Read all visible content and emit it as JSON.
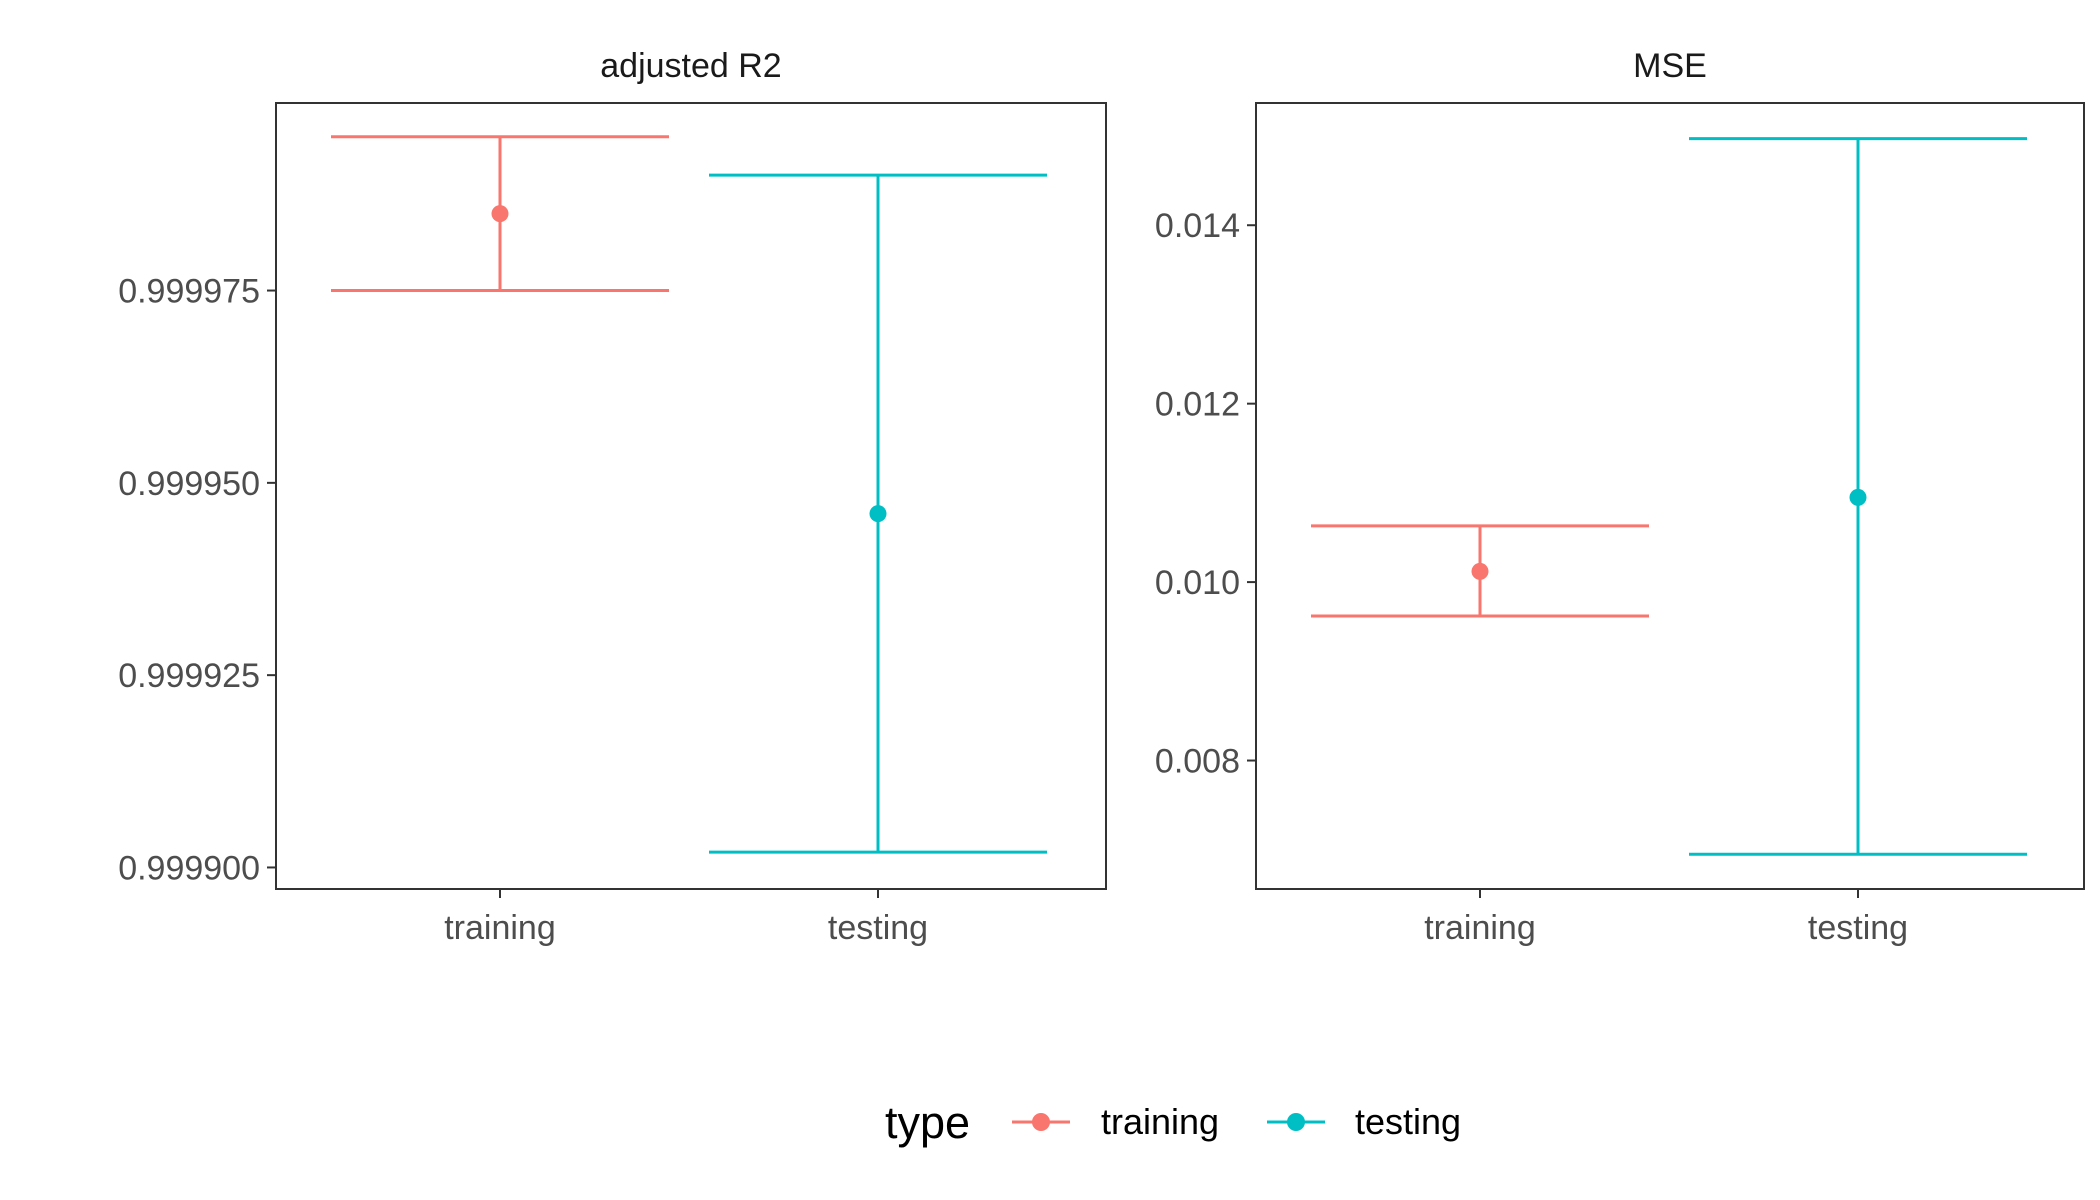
{
  "legend": {
    "title": "type",
    "items": [
      {
        "label": "training",
        "color": "#F8766D"
      },
      {
        "label": "testing",
        "color": "#00BFC4"
      }
    ]
  },
  "chart_data": [
    {
      "type": "errorbar",
      "title": "adjusted R2",
      "categories": [
        "training",
        "testing"
      ],
      "points": [
        {
          "x": "training",
          "y": 0.999985,
          "ymin": 0.999975,
          "ymax": 0.999995
        },
        {
          "x": "testing",
          "y": 0.999946,
          "ymin": 0.999902,
          "ymax": 0.99999
        }
      ],
      "yticks": [
        0.9999,
        0.999925,
        0.99995,
        0.999975
      ],
      "ytick_labels": [
        "0.999900",
        "0.999925",
        "0.999950",
        "0.999975"
      ],
      "ylim": [
        0.9998972,
        0.99999938
      ],
      "xlabel": "",
      "ylabel": "",
      "grid": false
    },
    {
      "type": "errorbar",
      "title": "MSE",
      "categories": [
        "training",
        "testing"
      ],
      "points": [
        {
          "x": "training",
          "y": 0.01012,
          "ymin": 0.00962,
          "ymax": 0.01063
        },
        {
          "x": "testing",
          "y": 0.01095,
          "ymin": 0.00695,
          "ymax": 0.01497
        }
      ],
      "yticks": [
        0.008,
        0.01,
        0.012,
        0.014
      ],
      "ytick_labels": [
        "0.008",
        "0.010",
        "0.012",
        "0.014"
      ],
      "ylim": [
        0.00656,
        0.01537
      ],
      "xlabel": "",
      "ylabel": "",
      "grid": false
    }
  ]
}
